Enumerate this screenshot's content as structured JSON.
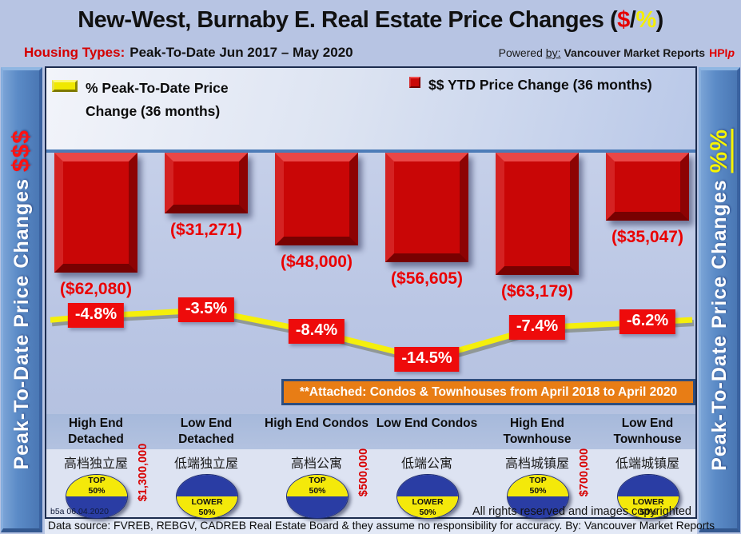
{
  "header": {
    "title_prefix": "New-West, Burnaby E. Real Estate Price Changes (",
    "title_dollar": "$",
    "title_slash": "/",
    "title_percent": "%",
    "title_suffix": ")",
    "subtitle_label": "Housing Types:",
    "subtitle_text": "Peak-To-Date Jun 2017 – May 2020",
    "powered_prefix": "Powered",
    "powered_by": "by:",
    "powered_brand": "Vancouver Market Reports",
    "powered_hpi": "HPI",
    "powered_hpi_sub": "p"
  },
  "legend": {
    "pct_line1": "% Peak-To-Date Price",
    "pct_line2": "Change (36 months)",
    "usd_label": "$$ YTD Price Change (36 months)"
  },
  "sides": {
    "left_text": "Peak-To-Date Price Changes ",
    "left_accent": "$$$",
    "right_text": "Peak-To-Date Price  Changes  ",
    "right_accent": "%%"
  },
  "banner": {
    "text": "**Attached: Condos & Townhouses from April 2018 to April 2020"
  },
  "footer": {
    "version": "b5a 06.04.2020",
    "rights": "All rights reserved and  images copyrighted",
    "source": "Data source: FVREB, REBGV, CADREB Real Estate Board & they assume no responsibility for accuracy. By: Vancouver Market Reports"
  },
  "colors": {
    "bar_red": "#c90606",
    "label_red": "#ea0000",
    "line_yellow": "#f5ef0b",
    "sidebar_blue": "#5b8bc7",
    "banner_orange": "#e87d15",
    "badge_blue": "#2a3da4",
    "badge_yellow": "#f4e90a"
  },
  "chart_data": {
    "type": "bar+line",
    "title": "New-West, Burnaby E. Real Estate Price Changes ($/%)",
    "period": "Peak-To-Date Jun 2017 – May 2020",
    "categories": [
      "High End Detached",
      "Low End Detached",
      "High End Condos",
      "Low End Condos",
      "High End Townhouse",
      "Low End Townhouse"
    ],
    "categories_zh": [
      "高档独立屋",
      "低端独立屋",
      "高档公寓",
      "低端公寓",
      "高档城镇屋",
      "低端城镇屋"
    ],
    "series": [
      {
        "name": "$$ YTD Price Change (36 months)",
        "type": "bar",
        "values": [
          -62080,
          -31271,
          -48000,
          -56605,
          -63179,
          -35047
        ],
        "labels": [
          "($62,080)",
          "($31,271)",
          "($48,000)",
          "($56,605)",
          "($63,179)",
          "($35,047)"
        ],
        "color": "#c90606"
      },
      {
        "name": "% Peak-To-Date Price Change (36 months)",
        "type": "line",
        "values": [
          -4.8,
          -3.5,
          -8.4,
          -14.5,
          -7.4,
          -6.2
        ],
        "labels": [
          "-4.8%",
          "-3.5%",
          "-8.4%",
          "-14.5%",
          "-7.4%",
          "-6.2%"
        ],
        "color": "#f5ef0b"
      }
    ],
    "badges": [
      {
        "lines": [
          "TOP",
          "50%"
        ],
        "type": "top"
      },
      {
        "lines": [
          "LOWER",
          "50%"
        ],
        "type": "lower"
      },
      {
        "lines": [
          "TOP",
          "50%"
        ],
        "type": "top"
      },
      {
        "lines": [
          "LOWER",
          "50%"
        ],
        "type": "lower"
      },
      {
        "lines": [
          "TOP",
          "50%"
        ],
        "type": "top"
      },
      {
        "lines": [
          "LOWER",
          "50%"
        ],
        "type": "lower"
      }
    ],
    "price_thresholds": [
      {
        "text": "$1,300,000",
        "between": [
          0,
          1
        ]
      },
      {
        "text": "$500,000",
        "between": [
          2,
          3
        ]
      },
      {
        "text": "$700,000",
        "between": [
          4,
          5
        ]
      }
    ],
    "annotation": "**Attached: Condos & Townhouses from April 2018 to April 2020",
    "legend_position": "top",
    "grid": false
  }
}
